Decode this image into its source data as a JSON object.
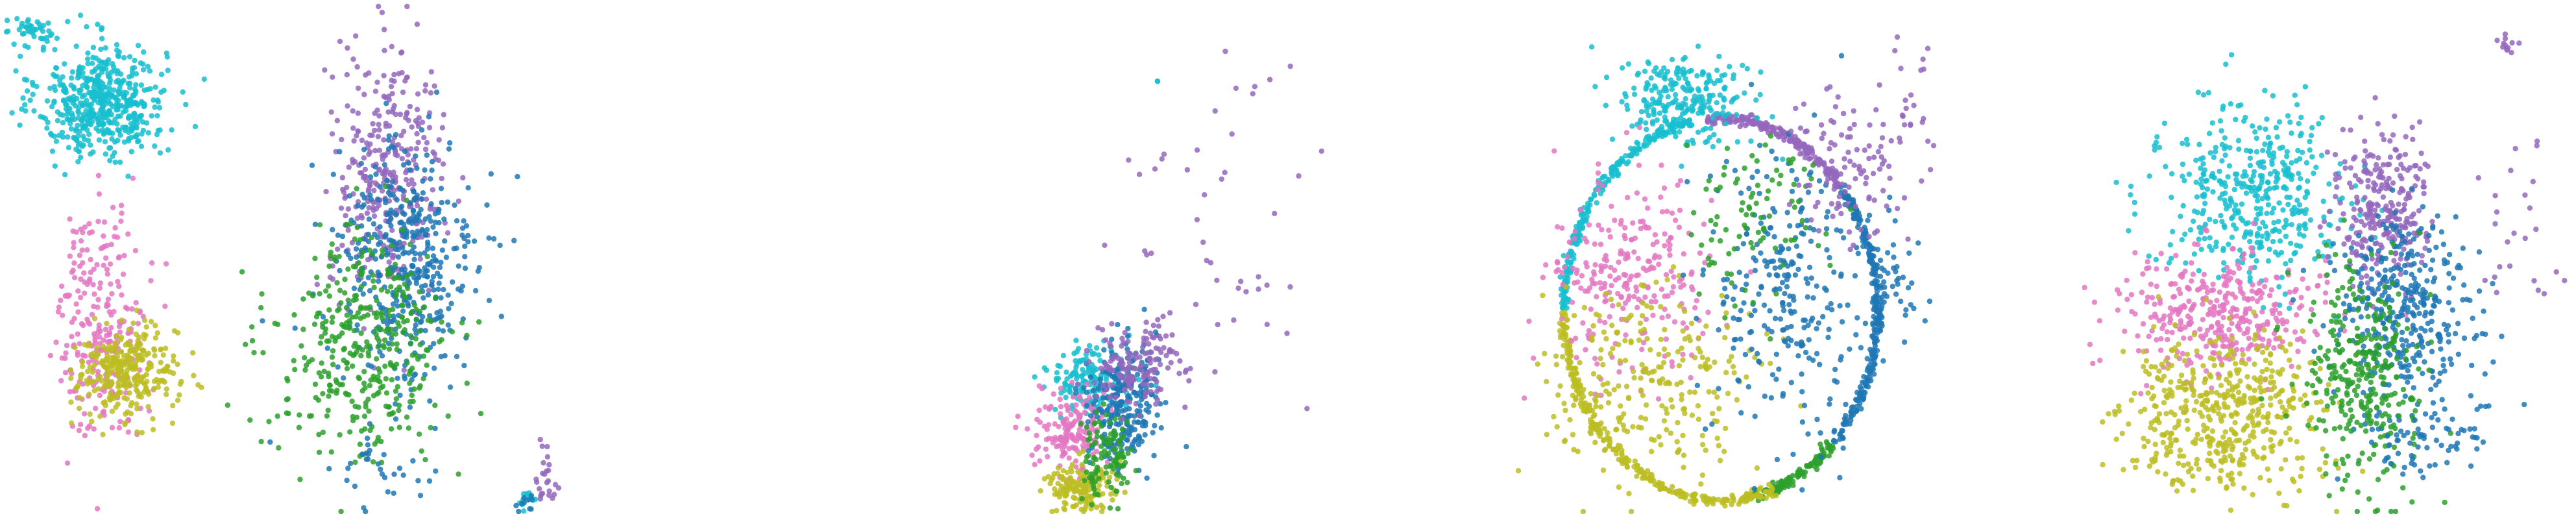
{
  "figure": {
    "background": "#ffffff",
    "point_opacity": 0.85
  },
  "colors": {
    "blue": "#1f77b4",
    "green": "#2ca02c",
    "purple": "#9467bd",
    "pink": "#e377c2",
    "olive": "#bcbd22",
    "cyan": "#17becf"
  },
  "chart_data": [
    {
      "type": "scatter",
      "title": "",
      "xlabel": "",
      "ylabel": "",
      "axes_visible": false,
      "grid": false,
      "legend": "none",
      "xlim": [
        0,
        10
      ],
      "ylim": [
        0,
        8
      ],
      "clusters": [
        {
          "color": "cyan",
          "center": [
            1.5,
            6.5
          ],
          "spread": [
            0.5,
            0.45
          ],
          "n": 520
        },
        {
          "color": "cyan",
          "center": [
            0.4,
            7.6
          ],
          "spread": [
            0.25,
            0.12
          ],
          "n": 40
        },
        {
          "color": "pink",
          "center": [
            1.5,
            3.0
          ],
          "spread": [
            0.35,
            0.9
          ],
          "n": 260
        },
        {
          "color": "olive",
          "center": [
            1.9,
            2.2
          ],
          "spread": [
            0.4,
            0.35
          ],
          "n": 300
        },
        {
          "color": "purple",
          "center": [
            6.0,
            5.3
          ],
          "spread": [
            0.45,
            1.0
          ],
          "n": 340
        },
        {
          "color": "blue",
          "center": [
            6.3,
            3.9
          ],
          "spread": [
            0.55,
            1.0
          ],
          "n": 420
        },
        {
          "color": "green",
          "center": [
            5.6,
            2.6
          ],
          "spread": [
            0.7,
            0.9
          ],
          "n": 380
        },
        {
          "color": "blue",
          "center": [
            6.0,
            0.6
          ],
          "spread": [
            0.4,
            0.3
          ],
          "n": 30
        },
        {
          "color": "purple",
          "center": [
            8.5,
            0.5
          ],
          "spread": [
            0.08,
            0.25
          ],
          "n": 25
        },
        {
          "color": "cyan",
          "center": [
            8.2,
            0.2
          ],
          "spread": [
            0.08,
            0.1
          ],
          "n": 12
        },
        {
          "color": "blue",
          "center": [
            8.2,
            0.2
          ],
          "spread": [
            0.08,
            0.1
          ],
          "n": 10
        }
      ]
    },
    {
      "type": "scatter",
      "title": "",
      "xlabel": "",
      "ylabel": "",
      "axes_visible": false,
      "grid": false,
      "legend": "none",
      "xlim": [
        0,
        10
      ],
      "ylim": [
        0,
        8
      ],
      "clusters": [
        {
          "color": "cyan",
          "center": [
            5.1,
            2.1
          ],
          "spread": [
            0.25,
            0.25
          ],
          "n": 160
        },
        {
          "color": "pink",
          "center": [
            4.9,
            1.3
          ],
          "spread": [
            0.2,
            0.35
          ],
          "n": 170
        },
        {
          "color": "olive",
          "center": [
            5.0,
            0.4
          ],
          "spread": [
            0.2,
            0.2
          ],
          "n": 160
        },
        {
          "color": "blue",
          "center": [
            5.5,
            1.7
          ],
          "spread": [
            0.2,
            0.5
          ],
          "n": 260
        },
        {
          "color": "green",
          "center": [
            5.3,
            0.9
          ],
          "spread": [
            0.15,
            0.35
          ],
          "n": 110
        },
        {
          "color": "purple",
          "center": [
            5.7,
            2.3
          ],
          "spread": [
            0.25,
            0.3
          ],
          "n": 140
        },
        {
          "color": "purple",
          "center": [
            6.6,
            4.2
          ],
          "spread": [
            0.7,
            1.3
          ],
          "n": 45
        },
        {
          "color": "purple",
          "center": [
            7.1,
            6.8
          ],
          "spread": [
            0.3,
            0.2
          ],
          "n": 5
        },
        {
          "color": "cyan",
          "center": [
            5.9,
            6.8
          ],
          "spread": [
            0.05,
            0.05
          ],
          "n": 2
        }
      ]
    },
    {
      "type": "scatter",
      "title": "",
      "xlabel": "",
      "ylabel": "",
      "axes_visible": false,
      "grid": false,
      "legend": "none",
      "xlim": [
        0,
        10
      ],
      "ylim": [
        0,
        8
      ],
      "ring": {
        "center": [
          3.9,
          3.2
        ],
        "radii": [
          3.0,
          3.05
        ]
      },
      "ring_arcs": [
        {
          "color": "cyan",
          "from": 100,
          "to": 180,
          "n": 230
        },
        {
          "color": "purple",
          "from": 40,
          "to": 95,
          "n": 200
        },
        {
          "color": "blue",
          "from": -45,
          "to": 40,
          "n": 260
        },
        {
          "color": "green",
          "from": -80,
          "to": -45,
          "n": 120
        },
        {
          "color": "olive",
          "from": 180,
          "to": 290,
          "n": 280
        }
      ],
      "clusters": [
        {
          "color": "cyan",
          "center": [
            3.2,
            6.5
          ],
          "spread": [
            0.6,
            0.35
          ],
          "n": 240
        },
        {
          "color": "pink",
          "center": [
            2.2,
            3.7
          ],
          "spread": [
            0.8,
            0.8
          ],
          "n": 260
        },
        {
          "color": "olive",
          "center": [
            2.5,
            2.0
          ],
          "spread": [
            1.0,
            0.8
          ],
          "n": 260
        },
        {
          "color": "blue",
          "center": [
            5.2,
            3.5
          ],
          "spread": [
            0.8,
            1.2
          ],
          "n": 280
        },
        {
          "color": "green",
          "center": [
            4.4,
            4.6
          ],
          "spread": [
            0.7,
            0.7
          ],
          "n": 90
        },
        {
          "color": "purple",
          "center": [
            6.4,
            5.4
          ],
          "spread": [
            0.6,
            0.6
          ],
          "n": 110
        },
        {
          "color": "purple",
          "center": [
            7.6,
            6.5
          ],
          "spread": [
            0.25,
            0.5
          ],
          "n": 20
        },
        {
          "color": "blue",
          "center": [
            7.2,
            3.6
          ],
          "spread": [
            0.3,
            0.35
          ],
          "n": 40
        }
      ]
    },
    {
      "type": "scatter",
      "title": "",
      "xlabel": "",
      "ylabel": "",
      "axes_visible": false,
      "grid": false,
      "legend": "none",
      "xlim": [
        0,
        10
      ],
      "ylim": [
        0,
        8
      ],
      "clusters": [
        {
          "color": "cyan",
          "center": [
            3.9,
            5.0
          ],
          "spread": [
            0.9,
            0.7
          ],
          "n": 420
        },
        {
          "color": "pink",
          "center": [
            3.2,
            3.1
          ],
          "spread": [
            1.0,
            0.45
          ],
          "n": 360
        },
        {
          "color": "olive",
          "center": [
            3.3,
            1.6
          ],
          "spread": [
            1.0,
            0.6
          ],
          "n": 480
        },
        {
          "color": "purple",
          "center": [
            6.4,
            4.8
          ],
          "spread": [
            0.45,
            0.6
          ],
          "n": 280
        },
        {
          "color": "blue",
          "center": [
            6.8,
            3.1
          ],
          "spread": [
            0.7,
            0.8
          ],
          "n": 380
        },
        {
          "color": "green",
          "center": [
            6.0,
            2.1
          ],
          "spread": [
            0.55,
            0.9
          ],
          "n": 320
        },
        {
          "color": "blue",
          "center": [
            7.1,
            1.1
          ],
          "spread": [
            0.6,
            0.3
          ],
          "n": 60
        },
        {
          "color": "purple",
          "center": [
            8.8,
            7.4
          ],
          "spread": [
            0.1,
            0.06
          ],
          "n": 12
        },
        {
          "color": "purple",
          "center": [
            8.9,
            4.5
          ],
          "spread": [
            0.4,
            0.8
          ],
          "n": 25
        }
      ]
    }
  ]
}
